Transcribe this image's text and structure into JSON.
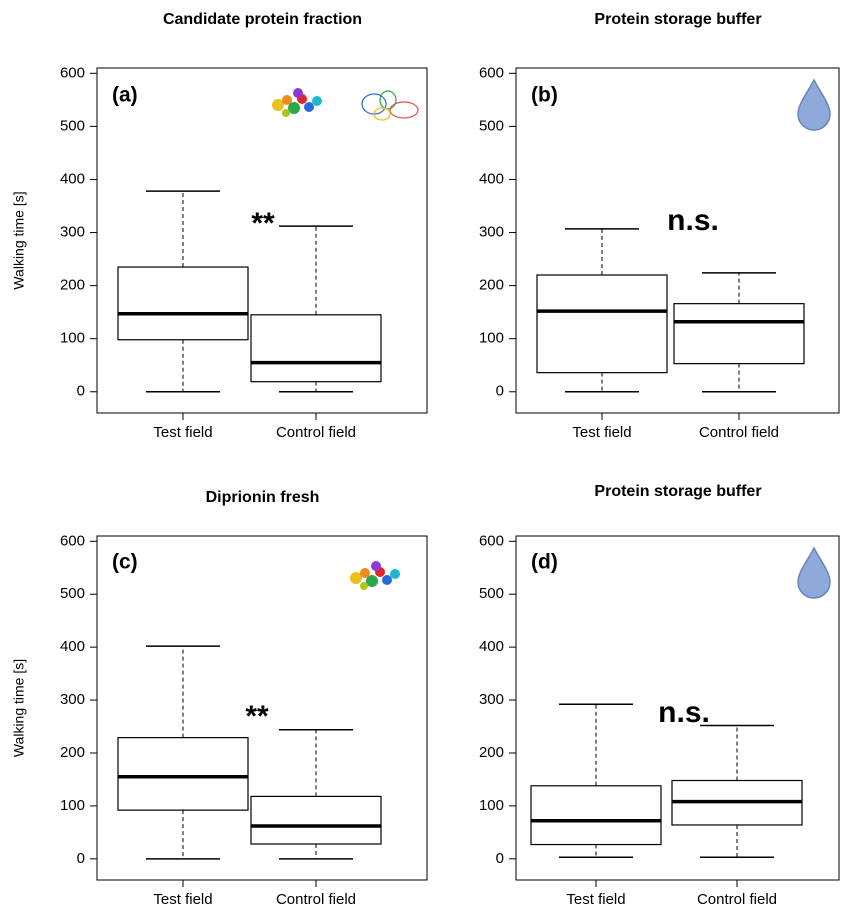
{
  "chart_data": [
    {
      "type": "box",
      "title": "Candidate protein fraction",
      "panel_label": "(a)",
      "annotation": "**",
      "y_label": "Walking time  [s]",
      "categories": [
        "Test field",
        "Control field"
      ],
      "boxes": [
        {
          "min": 0,
          "q1": 98,
          "median": 147,
          "q3": 235,
          "max": 378
        },
        {
          "min": 0,
          "q1": 19,
          "median": 55,
          "q3": 145,
          "max": 312
        }
      ],
      "ylim": [
        -40,
        610
      ],
      "yticks": [
        0,
        100,
        200,
        300,
        400,
        500,
        600
      ]
    },
    {
      "type": "box",
      "title": "Protein storage buffer",
      "panel_label": "(b)",
      "annotation": "n.s.",
      "categories": [
        "Test field",
        "Control field"
      ],
      "boxes": [
        {
          "min": 0,
          "q1": 36,
          "median": 152,
          "q3": 220,
          "max": 307
        },
        {
          "min": 0,
          "q1": 53,
          "median": 132,
          "q3": 166,
          "max": 224
        }
      ],
      "ylim": [
        -40,
        610
      ],
      "yticks": [
        0,
        100,
        200,
        300,
        400,
        500,
        600
      ]
    },
    {
      "type": "box",
      "title": "Diprionin fresh",
      "panel_label": "(c)",
      "annotation": "**",
      "y_label": "Walking time [s]",
      "categories": [
        "Test field",
        "Control field"
      ],
      "boxes": [
        {
          "min": 0,
          "q1": 92,
          "median": 155,
          "q3": 229,
          "max": 402
        },
        {
          "min": 0,
          "q1": 28,
          "median": 62,
          "q3": 118,
          "max": 244
        }
      ],
      "ylim": [
        -40,
        610
      ],
      "yticks": [
        0,
        100,
        200,
        300,
        400,
        500,
        600
      ]
    },
    {
      "type": "box",
      "title": "Protein storage buffer",
      "panel_label": "(d)",
      "annotation": "n.s.",
      "categories": [
        "Test field",
        "Control field"
      ],
      "boxes": [
        {
          "min": 3,
          "q1": 27,
          "median": 72,
          "q3": 138,
          "max": 292
        },
        {
          "min": 3,
          "q1": 64,
          "median": 108,
          "q3": 148,
          "max": 252
        }
      ],
      "ylim": [
        -40,
        610
      ],
      "yticks": [
        0,
        100,
        200,
        300,
        400,
        500,
        600
      ]
    }
  ]
}
